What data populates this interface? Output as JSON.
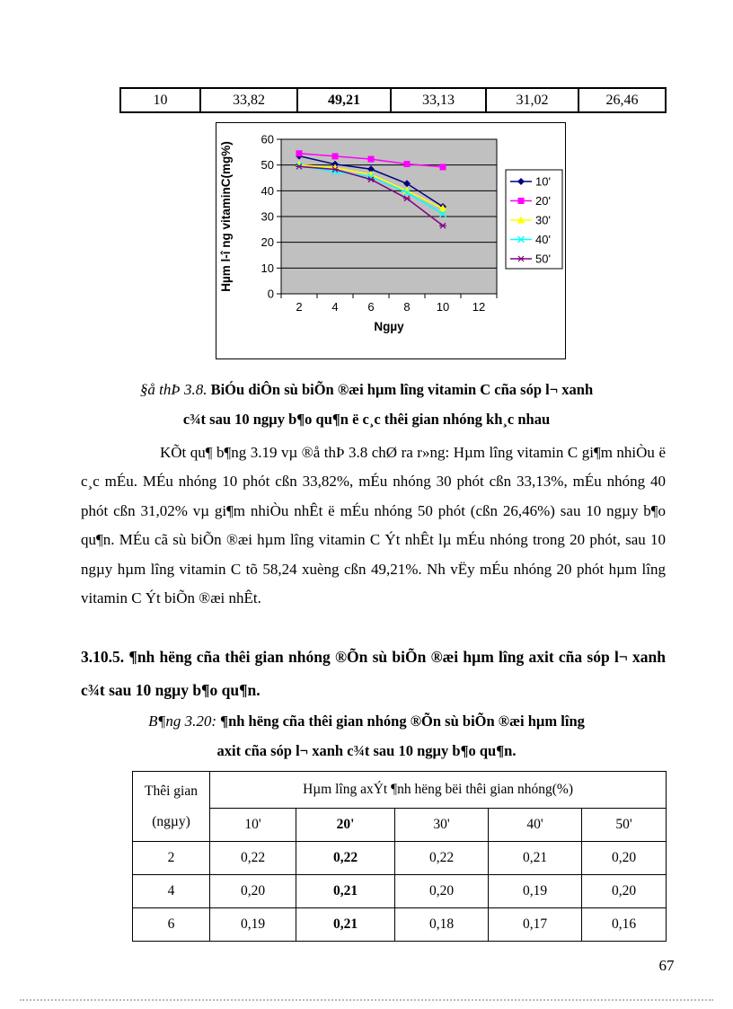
{
  "page": {
    "number": "67"
  },
  "top_table": {
    "row": [
      "10",
      "33,82",
      "49,21",
      "33,13",
      "31,02",
      "26,46"
    ]
  },
  "chart_caption": {
    "line1_prefix": "§å thÞ 3.8.",
    "line1_text": " BiÓu diÔn sù biÕn ®æi hµm lîng vitamin C cña sóp l¬ xanh",
    "line2_text": "c¾t sau 10 ngµy b¶o qu¶n ë c¸c thêi gian nhóng kh¸c nhau"
  },
  "paragraph": "KÕt qu¶ b¶ng 3.19 vµ ®å thÞ 3.8 chØ ra r»ng: Hµm lîng vitamin C gi¶m nhiÒu ë c¸c mÉu. MÉu nhóng 10 phót cßn 33,82%, mÉu nhóng 30 phót cßn 33,13%, mÉu nhóng 40 phót cßn 31,02% vµ gi¶m nhiÒu nhÊt ë mÉu nhóng 50 phót (cßn 26,46%) sau 10 ngµy b¶o qu¶n. MÉu cã sù biÕn ®æi hµm lîng vitamin C Ýt nhÊt lµ mÉu nhóng trong 20 phót, sau 10 ngµy hµm lîng vitamin C tõ 58,24 xuèng cßn 49,21%. Nh vËy mÉu nhóng 20 phót hµm lîng vitamin C Ýt biÕn ®æi nhÊt.",
  "heading": "3.10.5. ¶nh hëng cña thêi gian nhóng ®Õn sù biÕn ®æi hµm lîng axit cña sóp l¬ xanh c¾t sau 10 ngµy b¶o qu¶n.",
  "table_caption": {
    "line1_prefix": "B¶ng 3.20:",
    "line1_text": " ¶nh hëng cña thêi gian nhóng ®Õn sù biÕn ®æi hµm lîng",
    "line2_text": "axit cña sóp l¬ xanh c¾t sau 10 ngµy b¶o qu¶n."
  },
  "bottom_table": {
    "col0_line1": "Thêi gian",
    "col0_line2": "(ngµy)",
    "span_header": "Hµm lîng axÝt ¶nh hëng bëi thêi gian nhóng(%)",
    "sub_headers": [
      "10'",
      "20'",
      "30'",
      "40'",
      "50'"
    ],
    "rows": [
      [
        "2",
        "0,22",
        "0,22",
        "0,22",
        "0,21",
        "0,20"
      ],
      [
        "4",
        "0,20",
        "0,21",
        "0,20",
        "0,19",
        "0,20"
      ],
      [
        "6",
        "0,19",
        "0,21",
        "0,18",
        "0,17",
        "0,16"
      ]
    ]
  },
  "chart_data": {
    "type": "line",
    "title": "",
    "xlabel": "Ngµy",
    "ylabel": "Hµm l-î ng vitaminC(mg%)",
    "x": [
      2,
      4,
      6,
      8,
      10
    ],
    "xticks": [
      2,
      4,
      6,
      8,
      10,
      12
    ],
    "yticks": [
      0,
      10,
      20,
      30,
      40,
      50,
      60
    ],
    "xlim": [
      1,
      13
    ],
    "ylim": [
      0,
      60
    ],
    "grid": "horizontal",
    "plot_bg": "#c0c0c0",
    "legend_position": "right",
    "series": [
      {
        "name": "10'",
        "color": "#000080",
        "marker": "diamond",
        "values": [
          53.5,
          50.3,
          48.4,
          42.8,
          33.82
        ]
      },
      {
        "name": "20'",
        "color": "#ff00ff",
        "marker": "square",
        "values": [
          54.5,
          53.4,
          52.3,
          50.4,
          49.21
        ]
      },
      {
        "name": "30'",
        "color": "#ffff00",
        "marker": "triangle",
        "values": [
          50.1,
          48.9,
          46.3,
          40.0,
          33.13
        ]
      },
      {
        "name": "40'",
        "color": "#00ffff",
        "marker": "x",
        "values": [
          49.7,
          47.4,
          45.4,
          39.3,
          31.02
        ]
      },
      {
        "name": "50'",
        "color": "#800080",
        "marker": "asterisk",
        "values": [
          49.4,
          48.3,
          44.4,
          37.0,
          26.46
        ]
      }
    ]
  }
}
